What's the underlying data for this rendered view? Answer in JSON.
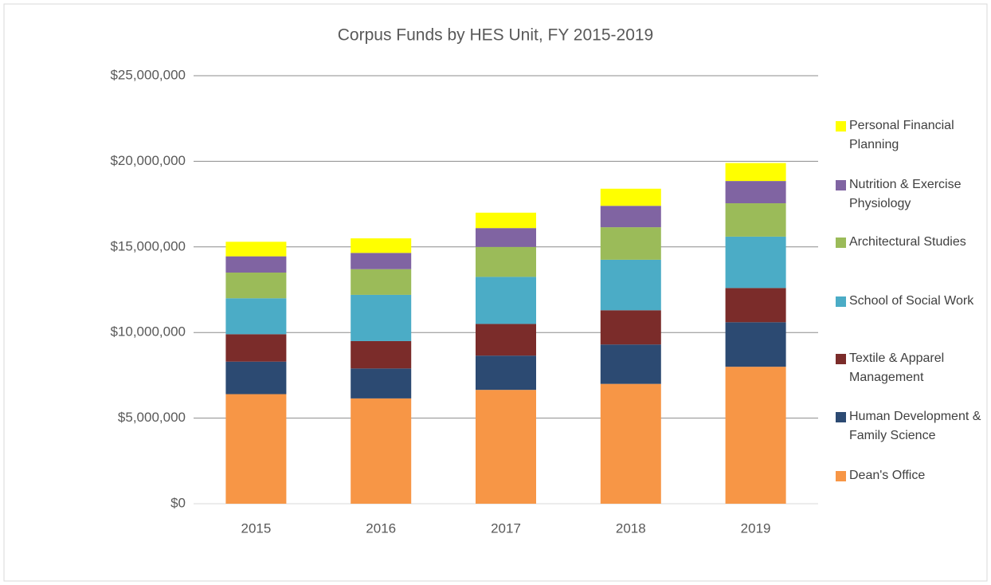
{
  "chart_data": {
    "type": "stacked_bar",
    "title": "Corpus Funds by HES Unit, FY 2015-2019",
    "categories": [
      "2015",
      "2016",
      "2017",
      "2018",
      "2019"
    ],
    "series": [
      {
        "name": "Dean's Office",
        "color": "#f79646",
        "values": [
          6400000,
          6150000,
          6650000,
          7000000,
          8000000
        ]
      },
      {
        "name": "Human Development & Family Science",
        "color": "#2c4a72",
        "values": [
          1900000,
          1750000,
          2000000,
          2300000,
          2600000
        ]
      },
      {
        "name": "Textile & Apparel Management",
        "color": "#7b2c2a",
        "values": [
          1600000,
          1600000,
          1850000,
          2000000,
          2000000
        ]
      },
      {
        "name": "School of Social Work",
        "color": "#4bacc6",
        "values": [
          2100000,
          2700000,
          2750000,
          2950000,
          3000000
        ]
      },
      {
        "name": "Architectural Studies",
        "color": "#9bbb59",
        "values": [
          1500000,
          1500000,
          1750000,
          1900000,
          1950000
        ]
      },
      {
        "name": "Nutrition & Exercise Physiology",
        "color": "#8064a2",
        "values": [
          950000,
          950000,
          1100000,
          1250000,
          1300000
        ]
      },
      {
        "name": "Personal Financial Planning",
        "color": "#ffff00",
        "values": [
          850000,
          850000,
          900000,
          1000000,
          1050000
        ]
      }
    ],
    "ylim": [
      0,
      25000000
    ],
    "yticks": [
      {
        "value": 0,
        "label": "$0"
      },
      {
        "value": 5000000,
        "label": "$5,000,000"
      },
      {
        "value": 10000000,
        "label": "$10,000,000"
      },
      {
        "value": 15000000,
        "label": "$15,000,000"
      },
      {
        "value": 20000000,
        "label": "$20,000,000"
      },
      {
        "value": 25000000,
        "label": "$25,000,000"
      }
    ],
    "grid": true,
    "legend": "right"
  }
}
